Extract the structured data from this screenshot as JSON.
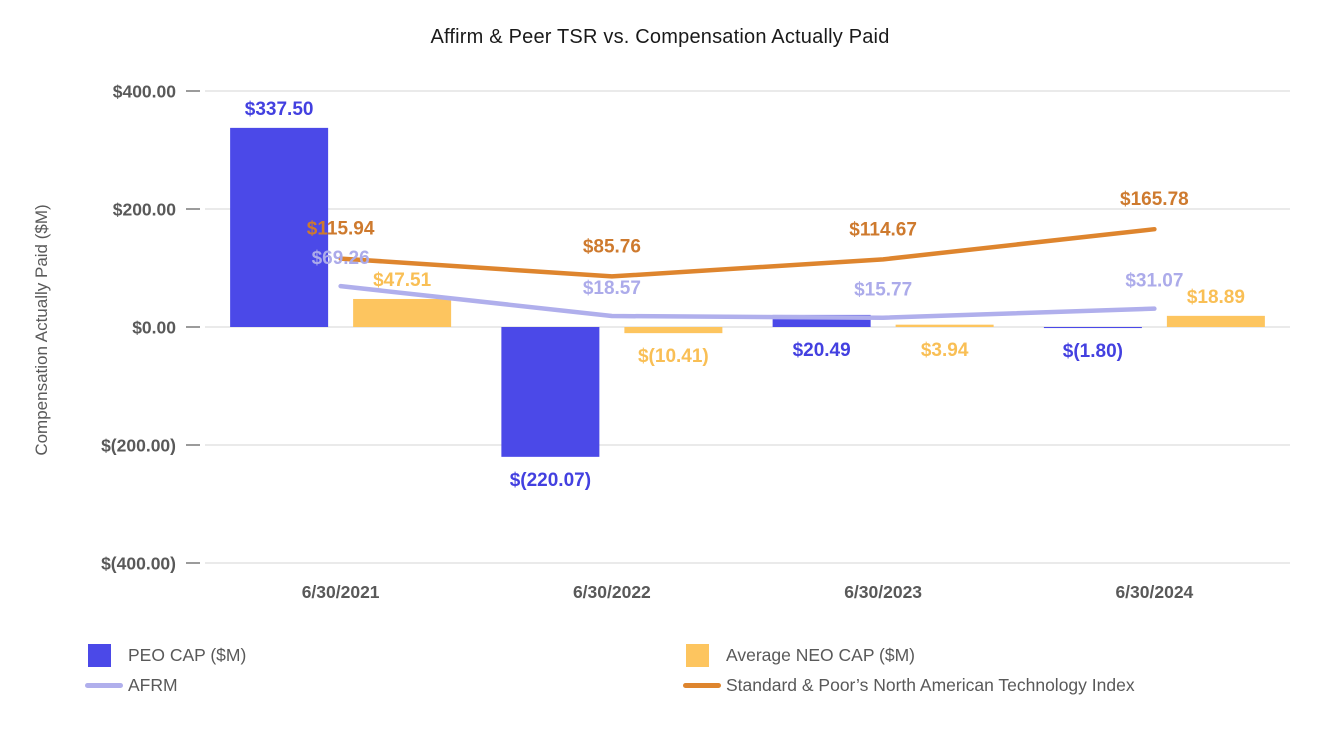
{
  "title": "Affirm & Peer TSR vs. Compensation Actually Paid",
  "chart_data": {
    "type": "combo (bar + line)",
    "title": "Affirm & Peer TSR vs. Compensation Actually Paid",
    "categories": [
      "6/30/2021",
      "6/30/2022",
      "6/30/2023",
      "6/30/2024"
    ],
    "bar_series": [
      {
        "name": "PEO CAP ($M)",
        "color": "#4B49E8",
        "label_color": "#4340E0",
        "values": [
          337.5,
          -220.07,
          20.49,
          -1.8
        ],
        "labels": [
          "$337.50",
          "$(220.07)",
          "$20.49",
          "$(1.80)"
        ],
        "label_placement": [
          "above",
          "below",
          "below",
          "below"
        ]
      },
      {
        "name": "Average NEO CAP ($M)",
        "color": "#FDC55F",
        "label_color": "#F9BF55",
        "values": [
          47.51,
          -10.41,
          3.94,
          18.89
        ],
        "labels": [
          "$47.51",
          "$(10.41)",
          "$3.94",
          "$18.89"
        ],
        "label_placement": [
          "above",
          "below",
          "below",
          "above"
        ]
      }
    ],
    "line_series": [
      {
        "name": "AFRM",
        "color": "#B0AFEC",
        "label_color": "#ACABEA",
        "values": [
          69.26,
          18.57,
          15.77,
          31.07
        ],
        "labels": [
          "$69.26",
          "$18.57",
          "$15.77",
          "$31.07"
        ],
        "label_dy": -22
      },
      {
        "name": "Standard & Poor’s North American Technology Index",
        "color": "#DE852E",
        "label_color": "#CE7A2E",
        "values": [
          115.94,
          85.76,
          114.67,
          165.78
        ],
        "labels": [
          "$115.94",
          "$85.76",
          "$114.67",
          "$165.78"
        ],
        "label_dy": -24
      }
    ],
    "y_axis": {
      "title": "Compensation Actually Paid ($M)",
      "min": -400,
      "max": 400,
      "tick_interval": 200,
      "ticks": [
        {
          "value": 400,
          "label": "$400.00"
        },
        {
          "value": 200,
          "label": "$200.00"
        },
        {
          "value": 0,
          "label": "$0.00"
        },
        {
          "value": -200,
          "label": "$(200.00)"
        },
        {
          "value": -400,
          "label": "$(400.00)"
        }
      ]
    },
    "grid": "horizontal gridlines on",
    "legend_position": "bottom, two columns"
  }
}
